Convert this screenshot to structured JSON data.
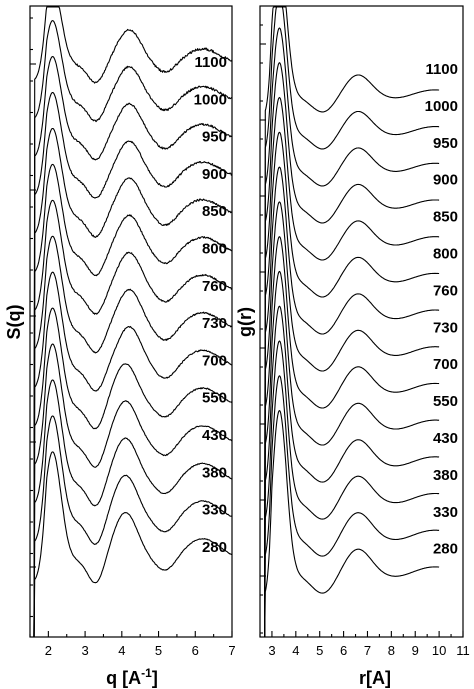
{
  "chart_data": [
    {
      "type": "line",
      "ylabel": "S(q)",
      "xlabel_main": "q [A",
      "xlabel_sup": "-1",
      "xlabel_tail": "]",
      "xlim": [
        1.5,
        7.0
      ],
      "xticks": [
        2,
        3,
        4,
        5,
        6,
        7
      ],
      "y_ticks_labeled": false,
      "grid": false,
      "curve_labels": [
        "1100",
        "1000",
        "950",
        "900",
        "850",
        "800",
        "760",
        "730",
        "700",
        "550",
        "430",
        "380",
        "330",
        "280"
      ],
      "series": [
        {
          "name": "1100",
          "peaks": {
            "first": 2.1,
            "second": 4.2,
            "third": 6.2
          }
        },
        {
          "name": "1000",
          "peaks": {
            "first": 2.1,
            "second": 4.2,
            "third": 6.2
          }
        },
        {
          "name": "950",
          "peaks": {
            "first": 2.1,
            "second": 4.2,
            "third": 6.2
          }
        },
        {
          "name": "900",
          "peaks": {
            "first": 2.1,
            "second": 4.2,
            "third": 6.2
          }
        },
        {
          "name": "850",
          "peaks": {
            "first": 2.1,
            "second": 4.2,
            "third": 6.2
          }
        },
        {
          "name": "800",
          "peaks": {
            "first": 2.1,
            "second": 4.2,
            "third": 6.2
          }
        },
        {
          "name": "760",
          "peaks": {
            "first": 2.1,
            "second": 4.2,
            "third": 6.2
          }
        },
        {
          "name": "730",
          "peaks": {
            "first": 2.1,
            "second": 4.2,
            "third": 6.2
          }
        },
        {
          "name": "700",
          "peaks": {
            "first": 2.1,
            "second": 4.2,
            "third": 6.2
          }
        },
        {
          "name": "550",
          "peaks": {
            "first": 2.1,
            "second": 4.1,
            "third": 6.2
          }
        },
        {
          "name": "430",
          "peaks": {
            "first": 2.1,
            "second": 4.1,
            "third": 6.2
          }
        },
        {
          "name": "380",
          "peaks": {
            "first": 2.1,
            "second": 4.1,
            "third": 6.2
          }
        },
        {
          "name": "330",
          "peaks": {
            "first": 2.1,
            "second": 4.1,
            "third": 6.2
          }
        },
        {
          "name": "280",
          "peaks": {
            "first": 2.1,
            "second": 4.1,
            "third": 6.2
          }
        }
      ]
    },
    {
      "type": "line",
      "ylabel": "g(r)",
      "xlabel_main": "r[A]",
      "xlim": [
        2.5,
        11.0
      ],
      "xticks": [
        3,
        4,
        5,
        6,
        7,
        8,
        9,
        10,
        11
      ],
      "y_ticks_labeled": false,
      "grid": false,
      "curve_labels": [
        "1100",
        "1000",
        "950",
        "900",
        "850",
        "800",
        "760",
        "730",
        "700",
        "550",
        "430",
        "380",
        "330",
        "280"
      ],
      "series": [
        {
          "name": "1100",
          "peaks": {
            "first": 3.3,
            "second": 6.6
          }
        },
        {
          "name": "1000",
          "peaks": {
            "first": 3.3,
            "second": 6.6
          }
        },
        {
          "name": "950",
          "peaks": {
            "first": 3.3,
            "second": 6.6
          }
        },
        {
          "name": "900",
          "peaks": {
            "first": 3.3,
            "second": 6.6
          }
        },
        {
          "name": "850",
          "peaks": {
            "first": 3.3,
            "second": 6.6
          }
        },
        {
          "name": "800",
          "peaks": {
            "first": 3.3,
            "second": 6.6
          }
        },
        {
          "name": "760",
          "peaks": {
            "first": 3.3,
            "second": 6.6
          }
        },
        {
          "name": "730",
          "peaks": {
            "first": 3.3,
            "second": 6.6
          }
        },
        {
          "name": "700",
          "peaks": {
            "first": 3.3,
            "second": 6.6
          }
        },
        {
          "name": "550",
          "peaks": {
            "first": 3.3,
            "second": 6.6
          }
        },
        {
          "name": "430",
          "peaks": {
            "first": 3.3,
            "second": 6.6
          }
        },
        {
          "name": "380",
          "peaks": {
            "first": 3.3,
            "second": 6.6
          }
        },
        {
          "name": "330",
          "peaks": {
            "first": 3.3,
            "second": 6.6
          }
        },
        {
          "name": "280",
          "peaks": {
            "first": 3.3,
            "second": 6.6
          }
        }
      ]
    }
  ]
}
